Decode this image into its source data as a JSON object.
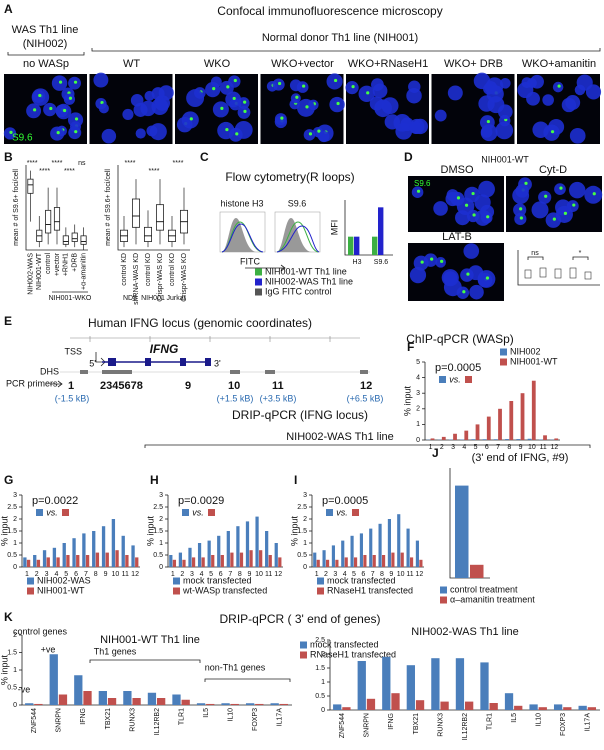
{
  "figure": {
    "panel_a": {
      "label": "A",
      "title": "Confocal immunofluorescence microscopy",
      "was_line": "WAS Th1 line",
      "was_id": "(NIH002)",
      "normal_line": "Normal donor Th1 line (NIH001)",
      "conditions": [
        "no WASp",
        "WT",
        "WKO",
        "WKO+vector",
        "WKO+RNaseH1",
        "WKO+ DRB",
        "WKO+amanitin"
      ],
      "stain": "S9.6"
    },
    "panel_b": {
      "label": "B",
      "group_left": "NIH001-WKO",
      "groups_right": [
        "ND8",
        "NIH001",
        "Jurkat"
      ]
    },
    "panel_c": {
      "label": "C",
      "title": "Flow cytometry(R loops)",
      "histograms": [
        "histone H3",
        "S9.6"
      ],
      "x_label": "FITC"
    },
    "panel_d": {
      "label": "D",
      "title": "NIH001-WT",
      "conditions": [
        "DMSO",
        "Cyt-D",
        "LAT-B"
      ],
      "stain": "S9.6",
      "inset_marks": [
        "ns",
        "*"
      ]
    },
    "panel_e": {
      "label": "E",
      "title": "Human IFNG locus (genomic coordinates)",
      "tss": "TSS",
      "gene": "IFNG",
      "five": "5'",
      "three": "3'",
      "dhs": "DHS",
      "primers_label": "PCR primers",
      "primers": [
        "1",
        "2345678",
        "9",
        "10",
        "11",
        "12"
      ],
      "offsets": [
        "(-1.5 kB)",
        "(+1.5 kB)",
        "(+3.5 kB)",
        "(+6.5 kB)"
      ]
    },
    "drip": {
      "title": "DRIP-qPCR (IFNG locus)",
      "subtitle": "NIH002-WAS Th1 line"
    },
    "panel_k": {
      "label": "K",
      "title": "DRIP-qPCR ( 3' end of genes)",
      "control_genes": "control genes",
      "pos": "+ve",
      "neg": "-ve",
      "th1": "Th1 genes",
      "non_th1": "non-Th1 genes"
    }
  },
  "chart_data": [
    {
      "type": "box",
      "y_label": "mean # of S9.6+ foci/cell",
      "categories": [
        "NIH002-WAS",
        "NIH001-WT",
        "control",
        "+vector",
        "+RNH1",
        "+DRB",
        "+α-amanitin"
      ],
      "boxes": [
        {
          "low": 10,
          "q1": 20,
          "median": 23,
          "q3": 25,
          "high": 28
        },
        {
          "low": 1,
          "q1": 3,
          "median": 5,
          "q3": 7,
          "high": 12
        },
        {
          "low": 2,
          "q1": 6,
          "median": 9,
          "q3": 14,
          "high": 22
        },
        {
          "low": 2,
          "q1": 7,
          "median": 10,
          "q3": 15,
          "high": 22
        },
        {
          "low": 1,
          "q1": 2,
          "median": 3,
          "q3": 5,
          "high": 8
        },
        {
          "low": 1,
          "q1": 3,
          "median": 4,
          "q3": 6,
          "high": 9
        },
        {
          "low": 0,
          "q1": 2,
          "median": 3,
          "q3": 5,
          "high": 8
        }
      ],
      "ylim": [
        0,
        30
      ],
      "annotations": [
        "****",
        "****",
        "****",
        "****",
        "ns"
      ]
    },
    {
      "type": "box",
      "y_label": "mean # of S9.6+ foci/cell",
      "categories": [
        "control KD",
        "shRNA-WAS KD",
        "control KO",
        "Crispr-WAS KO",
        "control KO",
        "Crispr-WAS KO"
      ],
      "boxes": [
        {
          "low": 1,
          "q1": 3,
          "median": 5,
          "q3": 7,
          "high": 12
        },
        {
          "low": 2,
          "q1": 8,
          "median": 12,
          "q3": 18,
          "high": 25
        },
        {
          "low": 1,
          "q1": 3,
          "median": 5,
          "q3": 8,
          "high": 14
        },
        {
          "low": 2,
          "q1": 7,
          "median": 10,
          "q3": 16,
          "high": 25
        },
        {
          "low": 1,
          "q1": 3,
          "median": 5,
          "q3": 7,
          "high": 12
        },
        {
          "low": 2,
          "q1": 6,
          "median": 10,
          "q3": 14,
          "high": 22
        }
      ],
      "ylim": [
        0,
        30
      ],
      "annotations": [
        "****",
        "****",
        "****"
      ]
    },
    {
      "type": "bar",
      "y_label": "MFI",
      "categories": [
        "H3",
        "S9.6"
      ],
      "series": [
        {
          "name": "NIH001-WT Th1 line",
          "color": "#3cb043",
          "values": [
            1000,
            1000
          ]
        },
        {
          "name": "NIH002-WAS Th1 line",
          "color": "#2222cc",
          "values": [
            1000,
            2600
          ]
        },
        {
          "name": "IgG FITC control",
          "color": "#555555",
          "values": [
            0,
            0
          ]
        }
      ],
      "ylim": [
        0,
        3000
      ]
    },
    {
      "type": "bar",
      "label": "F",
      "title": "ChIP-qPCR (WASp)",
      "y_label": "% input",
      "annotation": "p=0.0005",
      "vs_label": "vs.",
      "categories": [
        "1",
        "2",
        "3",
        "4",
        "5",
        "6",
        "7",
        "8",
        "9",
        "10",
        "11",
        "12"
      ],
      "series": [
        {
          "name": "NIH002",
          "color": "#4a7ebb",
          "values": [
            0.02,
            0.02,
            0.03,
            0.03,
            0.05,
            0.05,
            0.05,
            0.06,
            0.06,
            0.08,
            0.03,
            0.02
          ]
        },
        {
          "name": "NIH001-WT",
          "color": "#c0504d",
          "values": [
            0.1,
            0.2,
            0.4,
            0.6,
            1,
            1.5,
            2,
            2.5,
            3,
            3.8,
            0.3,
            0.1
          ]
        }
      ],
      "ylim": [
        0,
        5
      ],
      "yticks": [
        0,
        1,
        2,
        3,
        4,
        5
      ]
    },
    {
      "type": "bar",
      "label": "G",
      "y_label": "% input",
      "annotation": "p=0.0022",
      "vs_label": "vs.",
      "categories": [
        "1",
        "2",
        "3",
        "4",
        "5",
        "6",
        "7",
        "8",
        "9",
        "10",
        "11",
        "12"
      ],
      "series": [
        {
          "name": "NIH002-WAS",
          "color": "#4a7ebb",
          "values": [
            0.4,
            0.5,
            0.7,
            0.8,
            1.0,
            1.2,
            1.4,
            1.5,
            1.7,
            2.0,
            1.3,
            0.9
          ]
        },
        {
          "name": "NIH001-WT",
          "color": "#c0504d",
          "values": [
            0.3,
            0.3,
            0.4,
            0.4,
            0.5,
            0.5,
            0.5,
            0.6,
            0.6,
            0.7,
            0.5,
            0.4
          ]
        }
      ],
      "ylim": [
        0,
        3
      ],
      "yticks": [
        0,
        0.5,
        1,
        1.5,
        2,
        2.5,
        3
      ]
    },
    {
      "type": "bar",
      "label": "H",
      "y_label": "% input",
      "annotation": "p=0.0029",
      "vs_label": "vs.",
      "categories": [
        "1",
        "2",
        "3",
        "4",
        "5",
        "6",
        "7",
        "8",
        "9",
        "10",
        "11",
        "12"
      ],
      "series": [
        {
          "name": "mock transfected",
          "color": "#4a7ebb",
          "values": [
            0.5,
            0.6,
            0.8,
            1.0,
            1.1,
            1.3,
            1.5,
            1.7,
            1.9,
            2.1,
            1.5,
            1.0
          ]
        },
        {
          "name": "wt-WASp transfected",
          "color": "#c0504d",
          "values": [
            0.3,
            0.3,
            0.4,
            0.4,
            0.5,
            0.5,
            0.6,
            0.6,
            0.7,
            0.7,
            0.5,
            0.4
          ]
        }
      ],
      "ylim": [
        0,
        3
      ],
      "yticks": [
        0,
        0.5,
        1,
        1.5,
        2,
        2.5,
        3
      ]
    },
    {
      "type": "bar",
      "label": "I",
      "y_label": "% input",
      "annotation": "p=0.0005",
      "vs_label": "vs.",
      "categories": [
        "1",
        "2",
        "3",
        "4",
        "5",
        "6",
        "7",
        "8",
        "9",
        "10",
        "11",
        "12"
      ],
      "series": [
        {
          "name": "mock transfected",
          "color": "#4a7ebb",
          "values": [
            0.6,
            0.7,
            0.9,
            1.1,
            1.3,
            1.4,
            1.6,
            1.8,
            2.0,
            2.2,
            1.6,
            1.1
          ]
        },
        {
          "name": "RNaseH1 transfected",
          "color": "#c0504d",
          "values": [
            0.3,
            0.3,
            0.3,
            0.4,
            0.4,
            0.5,
            0.5,
            0.5,
            0.6,
            0.6,
            0.4,
            0.3
          ]
        }
      ],
      "ylim": [
        0,
        3
      ],
      "yticks": [
        0,
        0.5,
        1,
        1.5,
        2,
        2.5,
        3
      ]
    },
    {
      "type": "bar",
      "label": "J",
      "title": "(3' end of IFNG, #9)",
      "categories": [
        null
      ],
      "series": [
        {
          "name": "control treatment",
          "color": "#4a7ebb",
          "values": [
            2.1
          ]
        },
        {
          "name": "α–amanitin treatment",
          "color": "#c0504d",
          "values": [
            0.3
          ]
        }
      ],
      "ylim": [
        0,
        2.5
      ]
    },
    {
      "type": "bar",
      "title": "NIH001-WT Th1 line",
      "y_label": "% input",
      "categories": [
        "ZNF544",
        "SNRPN",
        "IFNG",
        "TBX21",
        "RUNX3",
        "IL12RB2",
        "TLR1",
        "IL5",
        "IL10",
        "FOXP3",
        "IL17A"
      ],
      "series": [
        {
          "name": "mock transfected",
          "color": "#4a7ebb",
          "values": [
            0.05,
            1.45,
            0.85,
            0.4,
            0.4,
            0.35,
            0.3,
            0.05,
            0.05,
            0.05,
            0.05
          ]
        },
        {
          "name": "RNaseH1 transfected",
          "color": "#c0504d",
          "values": [
            0.03,
            0.3,
            0.4,
            0.2,
            0.2,
            0.2,
            0.15,
            0.03,
            0.03,
            0.03,
            0.03
          ]
        }
      ],
      "ylim": [
        0,
        2
      ],
      "yticks": [
        0,
        0.5,
        1,
        1.5,
        2
      ]
    },
    {
      "type": "bar",
      "title": "NIH002-WAS Th1 line",
      "categories": [
        "ZNF544",
        "SNRPN",
        "IFNG",
        "TBX21",
        "RUNX3",
        "IL12RB2",
        "TLR1",
        "IL5",
        "IL10",
        "FOXP3",
        "IL17A"
      ],
      "series": [
        {
          "color": "#4a7ebb",
          "values": [
            0.2,
            1.75,
            1.9,
            1.6,
            1.85,
            1.85,
            1.7,
            0.6,
            0.2,
            0.2,
            0.15
          ]
        },
        {
          "color": "#c0504d",
          "values": [
            0.1,
            0.4,
            0.6,
            0.35,
            0.3,
            0.3,
            0.25,
            0.15,
            0.1,
            0.1,
            0.1
          ]
        }
      ],
      "ylim": [
        0,
        2.5
      ],
      "yticks": [
        0,
        0.5,
        1,
        1.5,
        2,
        2.5
      ]
    }
  ]
}
